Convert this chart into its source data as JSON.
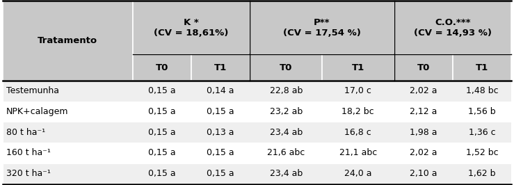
{
  "col_groups": [
    {
      "label": "K *\n(CV = 18,61%)",
      "subCols": [
        "T0",
        "T1"
      ]
    },
    {
      "label": "P**\n(CV = 17,54 %)",
      "subCols": [
        "T0",
        "T1"
      ]
    },
    {
      "label": "C.O.***\n(CV = 14,93 %)",
      "subCols": [
        "T0",
        "T1"
      ]
    }
  ],
  "row_header": "Tratamento",
  "rows": [
    {
      "label": "Testemunha",
      "values": [
        "0,15 a",
        "0,14 a",
        "22,8 ab",
        "17,0 c",
        "2,02 a",
        "1,48 bc"
      ]
    },
    {
      "label": "NPK+calagem",
      "values": [
        "0,15 a",
        "0,15 a",
        "23,2 ab",
        "18,2 bc",
        "2,12 a",
        "1,56 b"
      ]
    },
    {
      "label": "80 t ha⁻¹",
      "values": [
        "0,15 a",
        "0,13 a",
        "23,4 ab",
        "16,8 c",
        "1,98 a",
        "1,36 c"
      ]
    },
    {
      "label": "160 t ha⁻¹",
      "values": [
        "0,15 a",
        "0,15 a",
        "21,6 abc",
        "21,1 abc",
        "2,02 a",
        "1,52 bc"
      ]
    },
    {
      "label": "320 t ha⁻¹",
      "values": [
        "0,15 a",
        "0,15 a",
        "23,4 ab",
        "24,0 a",
        "2,10 a",
        "1,62 b"
      ]
    }
  ],
  "header_bg": "#c8c8c8",
  "row_bg_odd": "#efefef",
  "row_bg_even": "#ffffff",
  "font_size": 9.0,
  "header_font_size": 9.5
}
